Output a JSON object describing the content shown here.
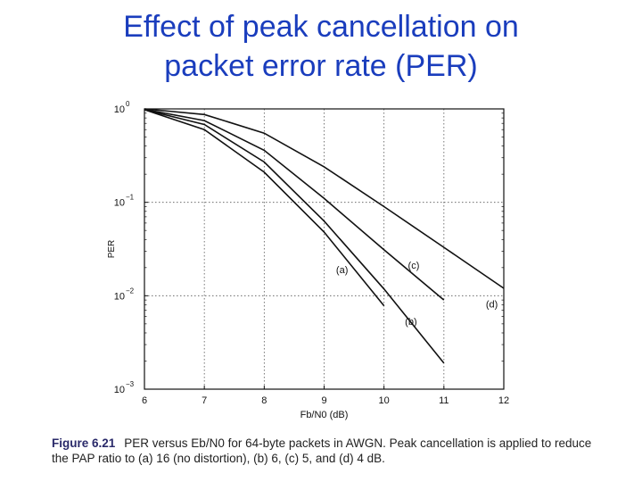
{
  "slide": {
    "title_line1": "Effect of peak cancellation on",
    "title_line2": "packet error rate (PER)",
    "title_color": "#1a3dbd"
  },
  "caption": {
    "figure_label": "Figure 6.21",
    "line1": "PER versus Eb/N0 for 64-byte packets in AWGN. Peak cancellation is applied to reduce",
    "line2": "the PAP ratio to (a) 16 (no distortion), (b) 6, (c) 5, and (d) 4 dB."
  },
  "chart_data": {
    "type": "line",
    "xlabel": "Fb/N0 (dB)",
    "ylabel": "PER",
    "xlim": [
      6,
      12
    ],
    "ylim": [
      0.001,
      1
    ],
    "yscale": "log",
    "grid": true,
    "x_ticks": [
      6,
      7,
      8,
      9,
      10,
      11,
      12
    ],
    "y_ticks": [
      {
        "value": 1,
        "base": "10",
        "exp": "0"
      },
      {
        "value": 0.1,
        "base": "10",
        "exp": "−1"
      },
      {
        "value": 0.01,
        "base": "10",
        "exp": "−2"
      },
      {
        "value": 0.001,
        "base": "10",
        "exp": "−3"
      }
    ],
    "series": [
      {
        "name": "(a)",
        "x": [
          6,
          7,
          8,
          9,
          10
        ],
        "y": [
          0.98,
          0.6,
          0.21,
          0.048,
          0.0078
        ]
      },
      {
        "name": "(b)",
        "x": [
          6,
          7,
          8,
          9,
          10,
          11
        ],
        "y": [
          0.98,
          0.68,
          0.27,
          0.063,
          0.0118,
          0.0019
        ]
      },
      {
        "name": "(c)",
        "x": [
          6,
          7,
          8,
          9,
          10,
          11
        ],
        "y": [
          0.99,
          0.75,
          0.36,
          0.11,
          0.031,
          0.009
        ]
      },
      {
        "name": "(d)",
        "x": [
          6,
          7,
          8,
          9,
          10,
          11,
          12
        ],
        "y": [
          1.0,
          0.87,
          0.55,
          0.24,
          0.09,
          0.033,
          0.012
        ]
      }
    ],
    "annotations": [
      {
        "text": "(a)",
        "x": 9.2,
        "y": 0.0175
      },
      {
        "text": "(b)",
        "x": 10.35,
        "y": 0.0049
      },
      {
        "text": "(c)",
        "x": 10.4,
        "y": 0.0195
      },
      {
        "text": "(d)",
        "x": 11.7,
        "y": 0.0075
      }
    ]
  }
}
